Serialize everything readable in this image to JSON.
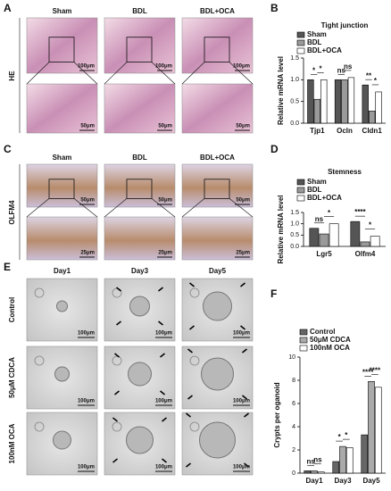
{
  "panel_labels": [
    "A",
    "B",
    "C",
    "D",
    "E",
    "F"
  ],
  "he_panel": {
    "columns": [
      "Sham",
      "BDL",
      "BDL+OCA"
    ],
    "row_label": "HE",
    "scale_bar_top": "100μm",
    "scale_bar_bottom": "50μm"
  },
  "olfm4_panel": {
    "columns": [
      "Sham",
      "BDL",
      "BDL+OCA"
    ],
    "row_label": "OLFM4",
    "scale_bar_top": "50μm",
    "scale_bar_bottom": "25μm"
  },
  "organoid_panel": {
    "columns": [
      "Day1",
      "Day3",
      "Day5"
    ],
    "rows": [
      "Control",
      "50μM CDCA",
      "100nM OCA"
    ],
    "scale_bar": "100μm"
  },
  "chart_data": [
    {
      "type": "bar",
      "title": "Tight junction",
      "y_label": "Relative mRNA level",
      "categories": [
        "Tjp1",
        "Ocln",
        "Cldn1"
      ],
      "series": [
        {
          "name": "Sham",
          "color": "#555555",
          "values": [
            1.0,
            1.0,
            0.88
          ]
        },
        {
          "name": "BDL",
          "color": "#9a9a9a",
          "values": [
            0.55,
            1.0,
            0.28
          ]
        },
        {
          "name": "BDL+OCA",
          "color": "#ffffff",
          "values": [
            1.0,
            1.05,
            0.72
          ]
        }
      ],
      "significance": [
        [
          "*",
          "*"
        ],
        [
          "ns",
          "ns"
        ],
        [
          "**",
          "*"
        ]
      ],
      "ylim": [
        0,
        1.5
      ],
      "yticks": [
        {
          "value": 0,
          "label": "0.0"
        },
        {
          "value": 0.5,
          "label": "0.5"
        },
        {
          "value": 1,
          "label": "1.0"
        },
        {
          "value": 1.5,
          "label": "1.5"
        }
      ]
    },
    {
      "type": "bar",
      "title": "Stemness",
      "y_label": "Relative mRNA level",
      "categories": [
        "Lgr5",
        "Olfm4"
      ],
      "series": [
        {
          "name": "Sham",
          "color": "#555555",
          "values": [
            0.8,
            1.1
          ]
        },
        {
          "name": "BDL",
          "color": "#9a9a9a",
          "values": [
            0.55,
            0.2
          ]
        },
        {
          "name": "BDL+OCA",
          "color": "#ffffff",
          "values": [
            1.0,
            0.45
          ]
        }
      ],
      "significance": [
        [
          "ns",
          "*"
        ],
        [
          "****",
          "*"
        ]
      ],
      "ylim": [
        0,
        1.5
      ],
      "yticks": [
        {
          "value": 0,
          "label": "0.0"
        },
        {
          "value": 0.5,
          "label": "0.5"
        },
        {
          "value": 1,
          "label": "1.0"
        },
        {
          "value": 1.5,
          "label": "1.5"
        }
      ]
    },
    {
      "type": "bar",
      "y_label": "Crypts per oganoid",
      "categories": [
        "Day1",
        "Day3",
        "Day5"
      ],
      "series": [
        {
          "name": "Control",
          "color": "#666666",
          "values": [
            0.2,
            1.0,
            3.3
          ]
        },
        {
          "name": "50μM CDCA",
          "color": "#aaaaaa",
          "values": [
            0.2,
            2.3,
            7.9
          ]
        },
        {
          "name": "100nM OCA",
          "color": "#ffffff",
          "values": [
            0.1,
            2.2,
            7.4
          ]
        }
      ],
      "significance": [
        [
          "ns",
          "ns"
        ],
        [
          "*",
          "*"
        ],
        [
          "****",
          "****"
        ]
      ],
      "ylim": [
        0,
        10
      ],
      "yticks": [
        0,
        2,
        4,
        6,
        8,
        10
      ]
    }
  ]
}
